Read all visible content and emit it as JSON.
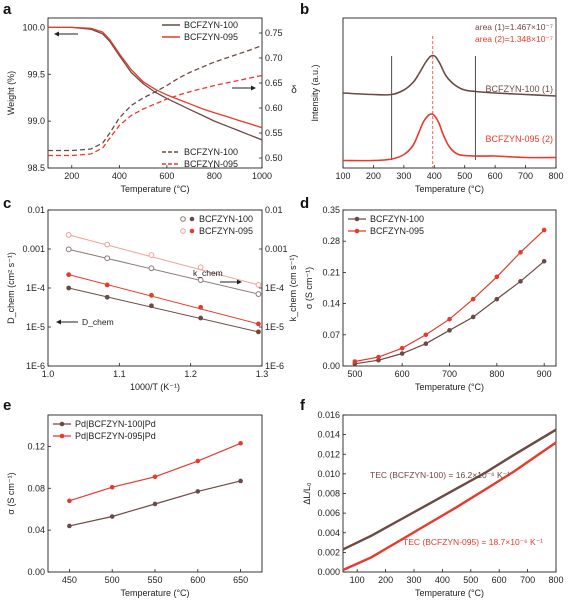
{
  "chart_data": [
    {
      "panel": "a",
      "type": "line",
      "xlabel": "Temperature (°C)",
      "ylabel": "Weight (%)",
      "y2label": "δ",
      "xlim": [
        100,
        1000
      ],
      "ylim": [
        98.5,
        100.1
      ],
      "y2lim": [
        0.48,
        0.78
      ],
      "xticks": [
        200,
        400,
        600,
        800,
        1000
      ],
      "yticks": [
        98.5,
        99.0,
        99.5,
        100.0
      ],
      "y2ticks": [
        0.5,
        0.55,
        0.6,
        0.65,
        0.7,
        0.75
      ],
      "legend_top": [
        "BCFZYN-100",
        "BCFZYN-095"
      ],
      "legend_bottom": [
        "BCFZYN-100",
        "BCFZYN-095"
      ],
      "series": [
        {
          "name": "BCFZYN-100",
          "axis": "left",
          "style": "solid",
          "color": "#6b4a44",
          "x": [
            100,
            200,
            280,
            330,
            360,
            400,
            450,
            500,
            550,
            600,
            650,
            700,
            750,
            800,
            850,
            900,
            950,
            1000
          ],
          "y": [
            100.0,
            100.0,
            99.98,
            99.93,
            99.85,
            99.7,
            99.52,
            99.4,
            99.31,
            99.24,
            99.18,
            99.12,
            99.06,
            99.0,
            98.95,
            98.9,
            98.85,
            98.8
          ]
        },
        {
          "name": "BCFZYN-095",
          "axis": "left",
          "style": "solid",
          "color": "#e8392b",
          "x": [
            100,
            200,
            280,
            330,
            360,
            400,
            450,
            500,
            550,
            600,
            650,
            700,
            750,
            800,
            850,
            900,
            950,
            1000
          ],
          "y": [
            100.0,
            100.0,
            99.99,
            99.95,
            99.87,
            99.72,
            99.55,
            99.42,
            99.34,
            99.28,
            99.23,
            99.18,
            99.13,
            99.09,
            99.05,
            99.01,
            98.97,
            98.93
          ]
        },
        {
          "name": "BCFZYN-100",
          "axis": "right",
          "style": "dashed",
          "color": "#6b4a44",
          "x": [
            100,
            200,
            280,
            330,
            360,
            400,
            450,
            500,
            550,
            600,
            650,
            700,
            750,
            800,
            850,
            900,
            950,
            1000
          ],
          "y": [
            0.515,
            0.515,
            0.518,
            0.53,
            0.55,
            0.58,
            0.605,
            0.62,
            0.632,
            0.645,
            0.66,
            0.672,
            0.682,
            0.692,
            0.7,
            0.708,
            0.716,
            0.725
          ]
        },
        {
          "name": "BCFZYN-095",
          "axis": "right",
          "style": "dashed",
          "color": "#e8392b",
          "x": [
            100,
            200,
            280,
            330,
            360,
            400,
            450,
            500,
            550,
            600,
            650,
            700,
            750,
            800,
            850,
            900,
            950,
            1000
          ],
          "y": [
            0.505,
            0.505,
            0.508,
            0.52,
            0.54,
            0.565,
            0.585,
            0.598,
            0.608,
            0.618,
            0.626,
            0.633,
            0.639,
            0.645,
            0.65,
            0.655,
            0.66,
            0.665
          ]
        }
      ]
    },
    {
      "panel": "b",
      "type": "line",
      "xlabel": "Temperature (°C)",
      "ylabel": "Intensity (a.u.)",
      "xlim": [
        100,
        800
      ],
      "ylim": [
        0,
        1
      ],
      "xticks": [
        100,
        200,
        300,
        400,
        500,
        600,
        700,
        800
      ],
      "annotations": [
        "area (1)=1.467×10⁻⁷",
        "area (2)=1.348×10⁻⁷"
      ],
      "labels": [
        "BCFZYN-100 (1)",
        "BCFZYN-095 (2)"
      ],
      "vlines": [
        260,
        395,
        535
      ],
      "series": [
        {
          "name": "BCFZYN-100 (1)",
          "color": "#6b4a44",
          "x": [
            100,
            200,
            260,
            300,
            330,
            350,
            370,
            385,
            395,
            405,
            420,
            440,
            470,
            500,
            535,
            600,
            700,
            800
          ],
          "y": [
            0.5,
            0.49,
            0.49,
            0.52,
            0.57,
            0.63,
            0.7,
            0.74,
            0.75,
            0.74,
            0.69,
            0.61,
            0.55,
            0.52,
            0.51,
            0.5,
            0.49,
            0.48
          ]
        },
        {
          "name": "BCFZYN-095 (2)",
          "color": "#e8392b",
          "x": [
            100,
            200,
            260,
            300,
            330,
            350,
            365,
            380,
            390,
            400,
            415,
            430,
            450,
            480,
            535,
            600,
            700,
            800
          ],
          "y": [
            0.05,
            0.05,
            0.06,
            0.09,
            0.15,
            0.24,
            0.31,
            0.35,
            0.36,
            0.35,
            0.3,
            0.22,
            0.14,
            0.09,
            0.08,
            0.08,
            0.07,
            0.07
          ]
        }
      ]
    },
    {
      "panel": "c",
      "type": "scatter",
      "xlabel": "1000/T (K⁻¹)",
      "ylabel": "D_chem (cm² s⁻¹)",
      "y2label": "k_chem (cm s⁻¹)",
      "xlim": [
        1.0,
        1.3
      ],
      "ylim": [
        1e-06,
        0.01
      ],
      "log_y": true,
      "xticks": [
        1.0,
        1.1,
        1.2,
        1.3
      ],
      "yticks": [
        "1E-6",
        "1E-5",
        "1E-4",
        "0.001",
        "0.01"
      ],
      "y2ticks": [
        "1E-6",
        "1E-5",
        "1E-4",
        "0.001",
        "0.01"
      ],
      "legend": [
        "BCFZYN-100",
        "BCFZYN-095"
      ],
      "annotations": [
        "k_chem",
        "D_chem"
      ],
      "series": [
        {
          "name": "BCFZYN-100",
          "quantity": "k_chem",
          "color": "#8a7a78",
          "marker": "open",
          "x": [
            1.029,
            1.083,
            1.145,
            1.214,
            1.295
          ],
          "y": [
            0.00098,
            0.00058,
            0.00032,
            0.00016,
            7e-05
          ]
        },
        {
          "name": "BCFZYN-095",
          "quantity": "k_chem",
          "color": "#f0a09a",
          "marker": "open",
          "x": [
            1.029,
            1.083,
            1.145,
            1.214,
            1.295
          ],
          "y": [
            0.0023,
            0.0013,
            0.0007,
            0.00034,
            0.00012
          ]
        },
        {
          "name": "BCFZYN-100",
          "quantity": "D_chem",
          "color": "#6b4a44",
          "marker": "filled",
          "x": [
            1.029,
            1.083,
            1.145,
            1.214,
            1.295
          ],
          "y": [
            0.0001,
            5.8e-05,
            3.5e-05,
            1.7e-05,
            7.5e-06
          ]
        },
        {
          "name": "BCFZYN-095",
          "quantity": "D_chem",
          "color": "#e8392b",
          "marker": "filled",
          "x": [
            1.029,
            1.083,
            1.145,
            1.214,
            1.295
          ],
          "y": [
            0.00022,
            0.00012,
            6.5e-05,
            3.2e-05,
            1.2e-05
          ]
        }
      ]
    },
    {
      "panel": "d",
      "type": "line",
      "xlabel": "Temperature (°C)",
      "ylabel": "σ (S cm⁻¹)",
      "xlim": [
        475,
        925
      ],
      "ylim": [
        0,
        0.35
      ],
      "xticks": [
        500,
        600,
        700,
        800,
        900
      ],
      "yticks": [
        0.0,
        0.07,
        0.14,
        0.21,
        0.28,
        0.35
      ],
      "legend": [
        "BCFZYN-100",
        "BCFZYN-095"
      ],
      "series": [
        {
          "name": "BCFZYN-100",
          "color": "#6b4a44",
          "x": [
            500,
            550,
            600,
            650,
            700,
            750,
            800,
            850,
            900
          ],
          "y": [
            0.005,
            0.013,
            0.028,
            0.05,
            0.08,
            0.11,
            0.15,
            0.19,
            0.235
          ]
        },
        {
          "name": "BCFZYN-095",
          "color": "#e8392b",
          "x": [
            500,
            550,
            600,
            650,
            700,
            750,
            800,
            850,
            900
          ],
          "y": [
            0.01,
            0.02,
            0.04,
            0.07,
            0.105,
            0.15,
            0.2,
            0.255,
            0.305
          ]
        }
      ]
    },
    {
      "panel": "e",
      "type": "line",
      "xlabel": "Temperature (°C)",
      "ylabel": "σ (S cm⁻¹)",
      "xlim": [
        425,
        675
      ],
      "ylim": [
        0,
        0.15
      ],
      "xticks": [
        450,
        500,
        550,
        600,
        650
      ],
      "yticks": [
        0.0,
        0.04,
        0.08,
        0.12
      ],
      "legend": [
        "Pd|BCFZYN-100|Pd",
        "Pd|BCFZYN-095|Pd"
      ],
      "series": [
        {
          "name": "Pd|BCFZYN-100|Pd",
          "color": "#6b4a44",
          "x": [
            450,
            500,
            550,
            600,
            650
          ],
          "y": [
            0.044,
            0.053,
            0.065,
            0.077,
            0.087
          ]
        },
        {
          "name": "Pd|BCFZYN-095|Pd",
          "color": "#e8392b",
          "x": [
            450,
            500,
            550,
            600,
            650
          ],
          "y": [
            0.068,
            0.081,
            0.091,
            0.106,
            0.123
          ]
        }
      ]
    },
    {
      "panel": "f",
      "type": "line",
      "xlabel": "Temperature (°C)",
      "ylabel": "ΔL/L₀",
      "xlim": [
        50,
        800
      ],
      "ylim": [
        0,
        0.016
      ],
      "xticks": [
        100,
        200,
        300,
        400,
        500,
        600,
        700,
        800
      ],
      "yticks": [
        0.0,
        0.002,
        0.004,
        0.006,
        0.008,
        0.01,
        0.012,
        0.014,
        0.016
      ],
      "annotations": [
        "TEC (BCFZYN-100) = 16.2×10⁻⁶ K⁻¹",
        "TEC (BCFZYN-095) = 18.7×10⁻⁶ K⁻¹"
      ],
      "series": [
        {
          "name": "BCFZYN-100",
          "color": "#6b4a44",
          "x": [
            50,
            150,
            250,
            350,
            450,
            550,
            650,
            800
          ],
          "y": [
            0.0023,
            0.0037,
            0.0053,
            0.0069,
            0.0085,
            0.0101,
            0.0119,
            0.0145
          ]
        },
        {
          "name": "BCFZYN-095",
          "color": "#e8392b",
          "x": [
            50,
            150,
            250,
            350,
            450,
            550,
            650,
            800
          ],
          "y": [
            0.0002,
            0.0015,
            0.0032,
            0.0049,
            0.0066,
            0.0084,
            0.0102,
            0.0132
          ]
        }
      ]
    }
  ]
}
